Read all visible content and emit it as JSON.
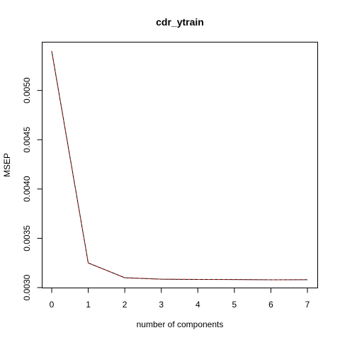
{
  "chart_data": {
    "type": "line",
    "title": "cdr_ytrain",
    "xlabel": "number of components",
    "ylabel": "MSEP",
    "x": [
      0,
      1,
      2,
      3,
      4,
      5,
      6,
      7
    ],
    "series": [
      {
        "values": [
          0.0054,
          0.00325,
          0.0031,
          0.003085,
          0.003083,
          0.003082,
          0.003079,
          0.00308
        ],
        "color": "#000000"
      },
      {
        "values": [
          0.0054,
          0.00325,
          0.0031,
          0.003085,
          0.003083,
          0.003082,
          0.003079,
          0.00308
        ],
        "color": "#b22222",
        "dashed": true
      }
    ],
    "xlim": [
      0,
      7
    ],
    "ylim": [
      0.003,
      0.00542
    ],
    "xticks": [
      "0",
      "1",
      "2",
      "3",
      "4",
      "5",
      "6",
      "7"
    ],
    "yticks": [
      "0.0030",
      "0.0035",
      "0.0040",
      "0.0045",
      "0.0050"
    ],
    "grid": false,
    "legend": "none"
  }
}
